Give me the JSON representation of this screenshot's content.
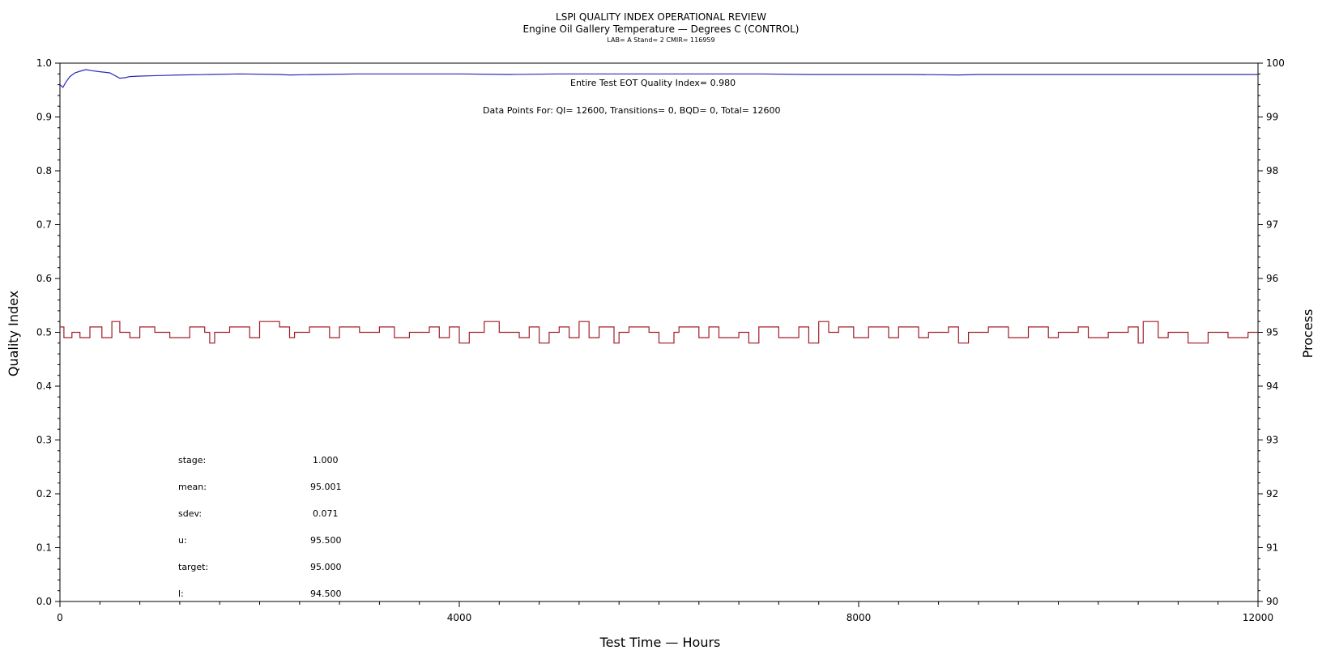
{
  "header": {
    "title": "LSPI QUALITY INDEX OPERATIONAL REVIEW",
    "subtitle": "Engine Oil Gallery Temperature — Degrees C (CONTROL)",
    "meta": "LAB= A Stand= 2 CMIR= 116959"
  },
  "annotations": {
    "quality_index": "Entire Test EOT Quality Index=   0.980",
    "data_points": "Data Points For: QI= 12600, Transitions=     0, BQD=     0, Total= 12600"
  },
  "stats": [
    {
      "label": "stage:",
      "value": "1.000"
    },
    {
      "label": "mean:",
      "value": "95.001"
    },
    {
      "label": "sdev:",
      "value": "0.071"
    },
    {
      "label": "u:",
      "value": "95.500"
    },
    {
      "label": "target:",
      "value": "95.000"
    },
    {
      "label": "l:",
      "value": "94.500"
    }
  ],
  "colors": {
    "quality_line": "#2a2ab8",
    "process_line": "#a01c28",
    "axis": "#000000"
  },
  "chart_data": {
    "type": "line",
    "xlabel": "Test Time — Hours",
    "ylabel": "Quality Index",
    "y2label": "Process",
    "xlim": [
      0,
      12000
    ],
    "ylim": [
      0.0,
      1.0
    ],
    "y2lim": [
      90,
      100
    ],
    "x_ticks": [
      "0",
      "4000",
      "8000",
      "12000"
    ],
    "y_ticks": [
      "0.0",
      "0.1",
      "0.2",
      "0.3",
      "0.4",
      "0.5",
      "0.6",
      "0.7",
      "0.8",
      "0.9",
      "1.0"
    ],
    "y2_ticks": [
      "90",
      "91",
      "92",
      "93",
      "94",
      "95",
      "96",
      "97",
      "98",
      "99",
      "100"
    ],
    "grid": false,
    "series": [
      {
        "axis": "left",
        "x": [
          0,
          30,
          60,
          100,
          150,
          200,
          260,
          320,
          400,
          500,
          600,
          650,
          700,
          800,
          1000,
          1200,
          1500,
          1800,
          2200,
          2300,
          2600,
          3000,
          3500,
          4000,
          4500,
          5000,
          6000,
          6500,
          7000,
          7500,
          8000,
          8500,
          9000,
          9200,
          10000,
          11000,
          12000
        ],
        "y": [
          0.96,
          0.955,
          0.965,
          0.975,
          0.982,
          0.985,
          0.988,
          0.986,
          0.984,
          0.982,
          0.972,
          0.973,
          0.975,
          0.976,
          0.977,
          0.978,
          0.979,
          0.98,
          0.979,
          0.978,
          0.979,
          0.98,
          0.98,
          0.98,
          0.979,
          0.98,
          0.98,
          0.98,
          0.98,
          0.979,
          0.979,
          0.979,
          0.978,
          0.979,
          0.979,
          0.979,
          0.979
        ]
      },
      {
        "axis": "right",
        "x": [
          0,
          40,
          120,
          200,
          300,
          420,
          520,
          600,
          700,
          800,
          950,
          1100,
          1300,
          1450,
          1500,
          1550,
          1700,
          1900,
          2000,
          2200,
          2300,
          2350,
          2500,
          2700,
          2800,
          3000,
          3200,
          3350,
          3500,
          3700,
          3800,
          3900,
          4000,
          4100,
          4250,
          4400,
          4600,
          4700,
          4800,
          4900,
          5000,
          5100,
          5200,
          5300,
          5400,
          5550,
          5600,
          5700,
          5900,
          6000,
          6150,
          6200,
          6400,
          6500,
          6600,
          6800,
          6900,
          7000,
          7200,
          7400,
          7500,
          7600,
          7700,
          7800,
          7950,
          8100,
          8300,
          8400,
          8600,
          8700,
          8900,
          9000,
          9100,
          9300,
          9500,
          9700,
          9900,
          10000,
          10200,
          10300,
          10500,
          10700,
          10800,
          10850,
          11000,
          11100,
          11300,
          11500,
          11700,
          11900,
          12000
        ],
        "y": [
          95.1,
          94.9,
          95.0,
          94.9,
          95.1,
          94.9,
          95.2,
          95.0,
          94.9,
          95.1,
          95.0,
          94.9,
          95.1,
          95.0,
          94.8,
          95.0,
          95.1,
          94.9,
          95.2,
          95.1,
          94.9,
          95.0,
          95.1,
          94.9,
          95.1,
          95.0,
          95.1,
          94.9,
          95.0,
          95.1,
          94.9,
          95.1,
          94.8,
          95.0,
          95.2,
          95.0,
          94.9,
          95.1,
          94.8,
          95.0,
          95.1,
          94.9,
          95.2,
          94.9,
          95.1,
          94.8,
          95.0,
          95.1,
          95.0,
          94.8,
          95.0,
          95.1,
          94.9,
          95.1,
          94.9,
          95.0,
          94.8,
          95.1,
          94.9,
          95.1,
          94.8,
          95.2,
          95.0,
          95.1,
          94.9,
          95.1,
          94.9,
          95.1,
          94.9,
          95.0,
          95.1,
          94.8,
          95.0,
          95.1,
          94.9,
          95.1,
          94.9,
          95.0,
          95.1,
          94.9,
          95.0,
          95.1,
          94.8,
          95.2,
          94.9,
          95.0,
          94.8,
          95.0,
          94.9,
          95.0,
          95.0
        ]
      }
    ]
  }
}
